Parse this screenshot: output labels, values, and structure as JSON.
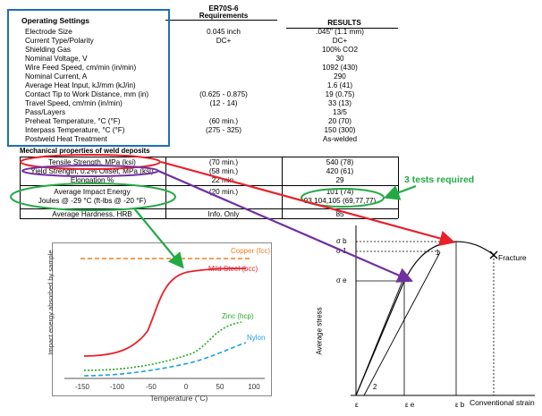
{
  "spec_table": {
    "header_setting": "Operating Settings",
    "header_req_line1": "ER70S-6",
    "header_req_line2": "Requirements",
    "header_results": "RESULTS",
    "rows": [
      {
        "label": "Electrode Size",
        "req": "0.045 inch",
        "res": ".045\" (1.1 mm)"
      },
      {
        "label": "Current Type/Polarity",
        "req": "DC+",
        "res": "DC+"
      },
      {
        "label": "Shielding Gas",
        "req": "",
        "res": "100% CO2"
      },
      {
        "label": "Nominal Voltage, V",
        "req": "",
        "res": "30"
      },
      {
        "label": "Wire Feed Speed, cm/min (in/min)",
        "req": "",
        "res": "1092 (430)"
      },
      {
        "label": "Nominal Current, A",
        "req": "",
        "res": "290"
      },
      {
        "label": "Average Heat Input, kJ/mm (kJ/in)",
        "req": "",
        "res": "1.6 (41)"
      },
      {
        "label": "Contact Tip to Work Distance, mm (in)",
        "req": "(0.625 - 0.875)",
        "res": "19 (0.75)"
      },
      {
        "label": "Travel Speed, cm/min (in/min)",
        "req": "(12 - 14)",
        "res": "33 (13)"
      },
      {
        "label": "Pass/Layers",
        "req": "",
        "res": "13/5"
      },
      {
        "label": "Preheat Temperature, °C (°F)",
        "req": "(60 min.)",
        "res": "20 (70)"
      },
      {
        "label": "Interpass Temperature, °C (°F)",
        "req": "(275 - 325)",
        "res": "150 (300)"
      },
      {
        "label": "Postweld Heat Treatment",
        "req": "",
        "res": "As-welded"
      }
    ],
    "mech_title": "Mechanical properties of weld deposits",
    "mech_rows": [
      {
        "label": "Tensile Strength, MPa (ksi)",
        "req": "(70 min.)",
        "res": "540 (78)"
      },
      {
        "label": "Yield Strength, 0.2% Offset, MPa (ksi)",
        "req": "(58 min.)",
        "res": "420 (61)"
      },
      {
        "label": "Elongation %",
        "req": "22 min.",
        "res": "29"
      },
      {
        "label": "Average Impact Energy",
        "req": "(20 min.)",
        "res": "101 (74)"
      },
      {
        "label": "Joules @ -29 °C (ft-lbs @ -20 °F)",
        "req": "",
        "res": "93,104,105 (69,77,77)"
      },
      {
        "label": "Average Hardness, HRB",
        "req": "Info. Only",
        "res": "85"
      }
    ]
  },
  "annotation": {
    "tests_required": "3 tests required",
    "arrow_red": "#e8202a",
    "arrow_purple": "#7030a0",
    "arrow_green": "#22aa44",
    "box_blue": "#1f6fb5"
  },
  "impact_chart": {
    "ylabel": "Impact energy absorbed by sample",
    "xlabel": "Temperature (˚C)",
    "ticks": [
      "-150",
      "-100",
      "-50",
      "0",
      "50",
      "100"
    ],
    "labels": {
      "copper": "Copper (fcc)",
      "mild": "Mild Steel (bcc)",
      "zinc": "Zinc (hcp)",
      "nylon": "Nylon"
    },
    "colors": {
      "copper": "#f08020",
      "mild": "#e8202a",
      "zinc": "#22aa22",
      "nylon": "#1ca0e0"
    }
  },
  "stress_strain": {
    "ylabel": "Average stress",
    "xlabel": "Conventional strain",
    "fracture": "Fracture",
    "sigma_b": "σ b",
    "sigma_1": "σ 1",
    "sigma_e": "σ e",
    "eps_e": "ε e",
    "eps_b": "ε b",
    "eps_0": "ε",
    "pt1": "1",
    "pt2": "2"
  }
}
